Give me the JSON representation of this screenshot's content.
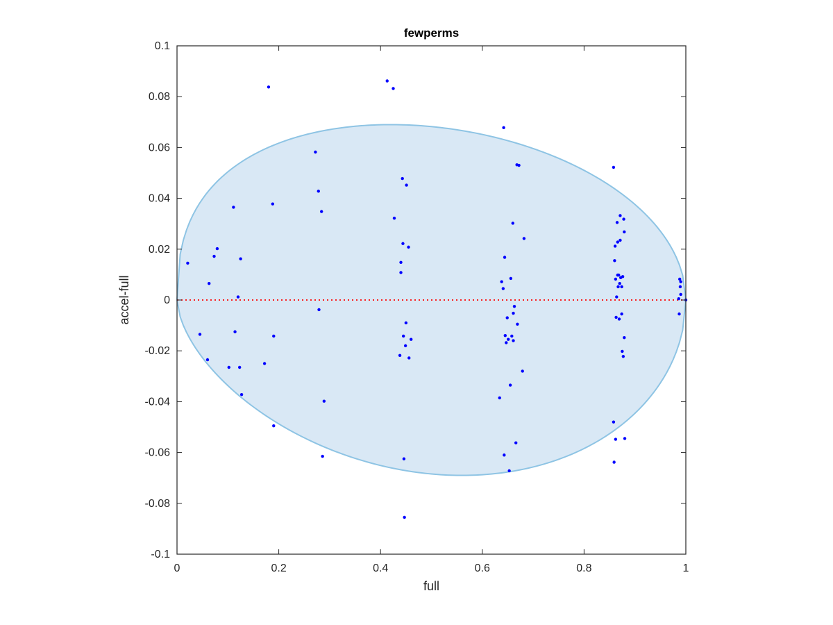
{
  "chart_data": {
    "type": "scatter",
    "title": "fewperms",
    "xlabel": "full",
    "ylabel": "accel-full",
    "xlim": [
      0,
      1
    ],
    "ylim": [
      -0.1,
      0.1
    ],
    "x_ticks": [
      0,
      0.2,
      0.4,
      0.6,
      0.8,
      1
    ],
    "x_tick_labels": [
      "0",
      "0.2",
      "0.4",
      "0.6",
      "0.8",
      "1"
    ],
    "y_ticks": [
      -0.1,
      -0.08,
      -0.06,
      -0.04,
      -0.02,
      0,
      0.02,
      0.04,
      0.06,
      0.08,
      0.1
    ],
    "y_tick_labels": [
      "-0.1",
      "-0.08",
      "-0.06",
      "-0.04",
      "-0.02",
      "0",
      "0.02",
      "0.04",
      "0.06",
      "0.08",
      "0.1"
    ],
    "grid": false,
    "box": true,
    "colors": {
      "points": "#0000ff",
      "ellipse_fill": "#d9e8f5",
      "ellipse_edge": "#8ec4e4",
      "reference_line": "#ff0000",
      "axes": "#262626"
    },
    "reference_line": {
      "y": 0,
      "style": "dotted"
    },
    "ellipse": {
      "x_range": [
        0,
        1
      ],
      "y_range": [
        -0.069,
        0.069
      ],
      "center_x": 0.5,
      "max_y_at_x": 0.42,
      "min_y_at_x": 0.56
    },
    "points": [
      [
        0.021,
        0.0145
      ],
      [
        0.063,
        0.0065
      ],
      [
        0.045,
        -0.0135
      ],
      [
        0.06,
        -0.0235
      ],
      [
        0.073,
        0.0172
      ],
      [
        0.079,
        0.0202
      ],
      [
        0.102,
        -0.0265
      ],
      [
        0.111,
        0.0365
      ],
      [
        0.114,
        -0.0125
      ],
      [
        0.12,
        0.0012
      ],
      [
        0.123,
        -0.0265
      ],
      [
        0.125,
        0.0162
      ],
      [
        0.127,
        -0.0372
      ],
      [
        0.172,
        -0.025
      ],
      [
        0.18,
        0.0838
      ],
      [
        0.188,
        0.0378
      ],
      [
        0.19,
        -0.0142
      ],
      [
        0.19,
        -0.0495
      ],
      [
        0.272,
        0.0582
      ],
      [
        0.278,
        0.0428
      ],
      [
        0.279,
        -0.0038
      ],
      [
        0.284,
        0.0348
      ],
      [
        0.286,
        -0.0615
      ],
      [
        0.289,
        -0.0398
      ],
      [
        0.413,
        0.0862
      ],
      [
        0.425,
        0.0832
      ],
      [
        0.427,
        0.0322
      ],
      [
        0.438,
        -0.0218
      ],
      [
        0.44,
        0.0148
      ],
      [
        0.44,
        0.0108
      ],
      [
        0.443,
        0.0478
      ],
      [
        0.444,
        0.0222
      ],
      [
        0.445,
        -0.0142
      ],
      [
        0.446,
        -0.0625
      ],
      [
        0.447,
        -0.0855
      ],
      [
        0.449,
        -0.018
      ],
      [
        0.45,
        -0.009
      ],
      [
        0.451,
        0.0452
      ],
      [
        0.455,
        0.0208
      ],
      [
        0.456,
        -0.0228
      ],
      [
        0.46,
        -0.0155
      ],
      [
        0.634,
        -0.0385
      ],
      [
        0.638,
        0.0072
      ],
      [
        0.641,
        0.0045
      ],
      [
        0.642,
        0.0678
      ],
      [
        0.643,
        -0.061
      ],
      [
        0.644,
        0.0168
      ],
      [
        0.645,
        -0.014
      ],
      [
        0.647,
        -0.0168
      ],
      [
        0.649,
        -0.007
      ],
      [
        0.651,
        -0.0155
      ],
      [
        0.653,
        -0.0672
      ],
      [
        0.655,
        -0.0335
      ],
      [
        0.656,
        0.0085
      ],
      [
        0.658,
        -0.0142
      ],
      [
        0.66,
        0.0302
      ],
      [
        0.661,
        -0.0052
      ],
      [
        0.661,
        -0.016
      ],
      [
        0.663,
        -0.0025
      ],
      [
        0.666,
        -0.0562
      ],
      [
        0.668,
        0.0532
      ],
      [
        0.669,
        -0.0095
      ],
      [
        0.672,
        0.053
      ],
      [
        0.679,
        -0.028
      ],
      [
        0.682,
        0.0242
      ],
      [
        0.858,
        0.0522
      ],
      [
        0.858,
        -0.048
      ],
      [
        0.859,
        -0.0638
      ],
      [
        0.86,
        0.0155
      ],
      [
        0.861,
        0.0212
      ],
      [
        0.862,
        -0.0548
      ],
      [
        0.862,
        0.0082
      ],
      [
        0.863,
        -0.0068
      ],
      [
        0.864,
        0.0012
      ],
      [
        0.865,
        0.0305
      ],
      [
        0.866,
        0.0228
      ],
      [
        0.866,
        0.0098
      ],
      [
        0.867,
        0.0052
      ],
      [
        0.868,
        0.0098
      ],
      [
        0.869,
        -0.0075
      ],
      [
        0.87,
        0.0065
      ],
      [
        0.871,
        0.0235
      ],
      [
        0.871,
        0.0332
      ],
      [
        0.872,
        0.0088
      ],
      [
        0.874,
        -0.0055
      ],
      [
        0.874,
        0.0052
      ],
      [
        0.875,
        -0.0202
      ],
      [
        0.876,
        0.0092
      ],
      [
        0.877,
        -0.0222
      ],
      [
        0.878,
        0.0318
      ],
      [
        0.879,
        0.0268
      ],
      [
        0.879,
        -0.0148
      ],
      [
        0.88,
        -0.0545
      ],
      [
        0.986,
        0.0005
      ],
      [
        0.987,
        -0.0055
      ],
      [
        0.988,
        0.0082
      ],
      [
        0.989,
        0.0052
      ],
      [
        0.99,
        0.0022
      ],
      [
        0.99,
        0.0072
      ],
      [
        1.0,
        0.0
      ]
    ]
  }
}
